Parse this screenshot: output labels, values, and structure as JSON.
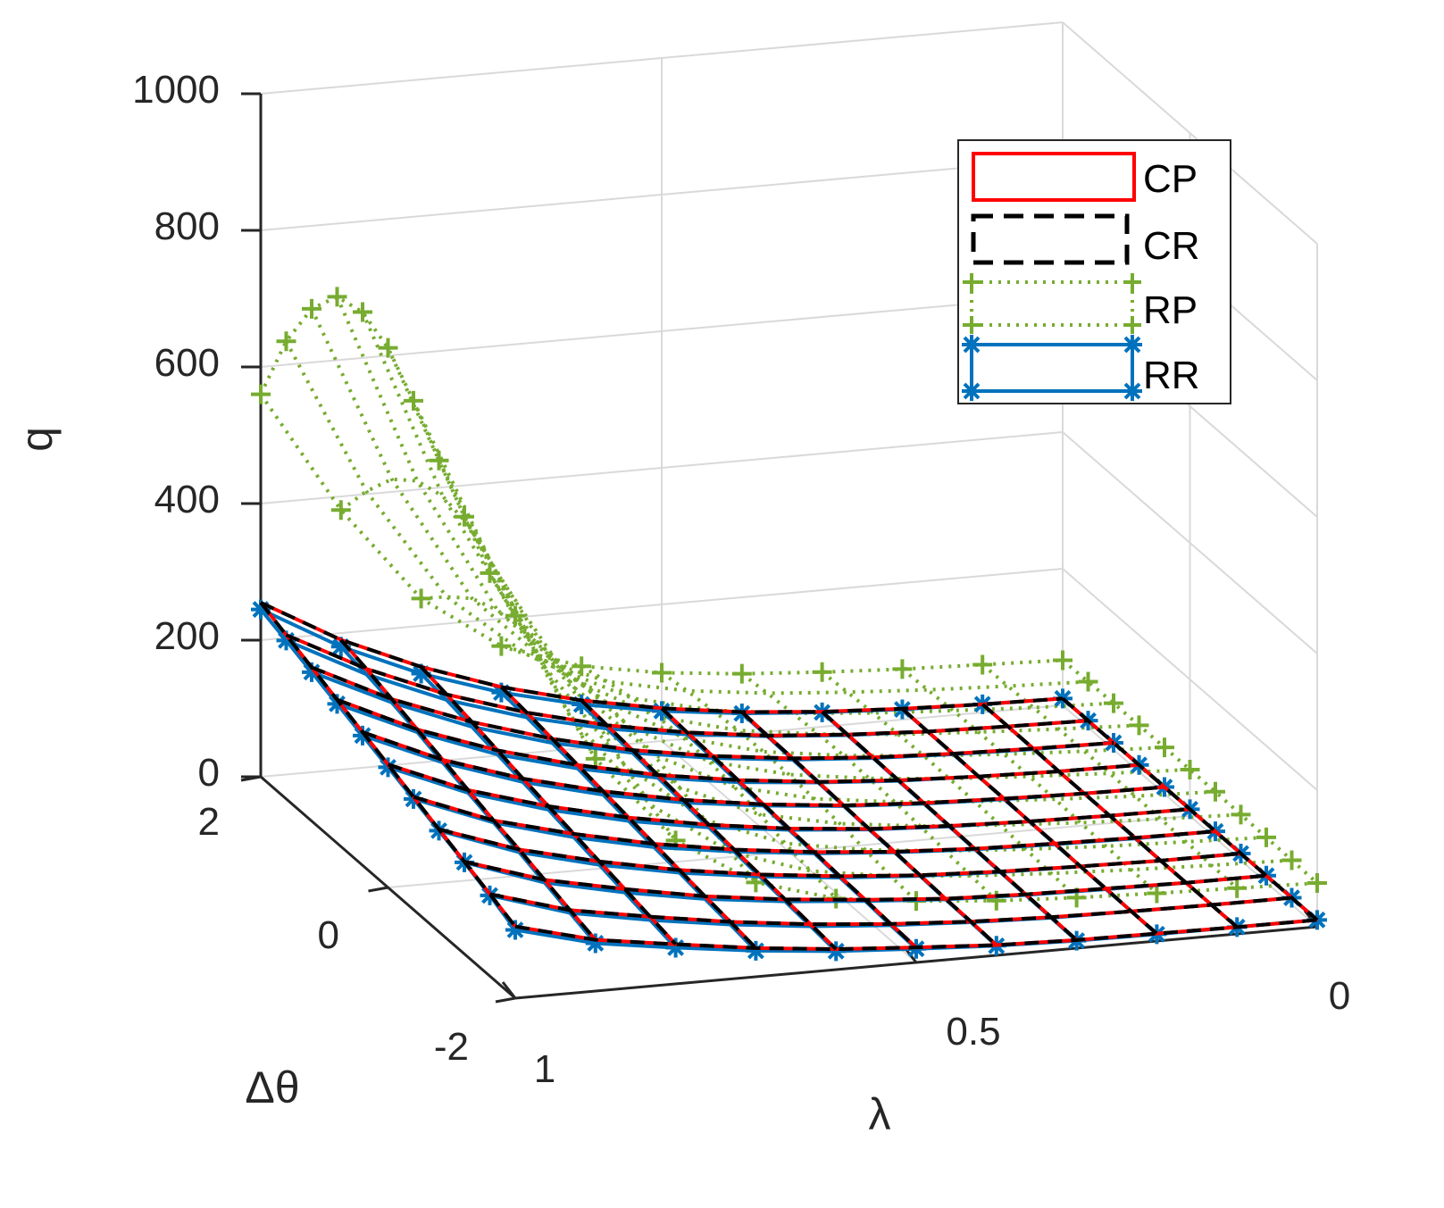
{
  "chart_data": {
    "type": "surface3d",
    "title": "",
    "xlabel": "λ",
    "ylabel": "Δθ",
    "zlabel": "q",
    "xlim": [
      0,
      1
    ],
    "ylim": [
      -2,
      2
    ],
    "zlim": [
      0,
      1000
    ],
    "x_ticks": [
      "0",
      "0.5",
      "1"
    ],
    "y_ticks": [
      "-2",
      "0",
      "2"
    ],
    "z_ticks": [
      "0",
      "200",
      "400",
      "600",
      "800",
      "1000"
    ],
    "grid": true,
    "legend": {
      "location": "top-right",
      "entries": [
        "CP",
        "CR",
        "RP",
        "RR"
      ]
    },
    "lambda_values": [
      1.0,
      0.9,
      0.8,
      0.7,
      0.6,
      0.5,
      0.4,
      0.3,
      0.2,
      0.1,
      0.0
    ],
    "dtheta_values": [
      2.0,
      1.6,
      1.2,
      0.8,
      0.4,
      0.0,
      -0.4,
      -0.8,
      -1.2,
      -1.6,
      -2.0
    ],
    "series": [
      {
        "name": "CP",
        "color": "#ff0000",
        "line": "solid",
        "marker": "none",
        "values_by_lambda": [
          [
            255,
            240,
            225,
            210,
            195,
            180,
            165,
            150,
            135,
            120,
            105
          ],
          [
            190,
            180,
            168,
            156,
            144,
            132,
            120,
            110,
            98,
            86,
            75
          ],
          [
            140,
            132,
            124,
            115,
            106,
            98,
            90,
            82,
            74,
            66,
            58
          ],
          [
            100,
            95,
            89,
            83,
            77,
            71,
            65,
            59,
            53,
            48,
            42
          ],
          [
            70,
            66,
            62,
            58,
            54,
            50,
            46,
            42,
            38,
            34,
            30
          ],
          [
            48,
            45,
            43,
            40,
            37,
            34,
            32,
            29,
            27,
            24,
            22
          ],
          [
            32,
            30,
            29,
            27,
            25,
            23,
            22,
            20,
            18,
            17,
            15
          ],
          [
            22,
            21,
            20,
            19,
            18,
            17,
            16,
            15,
            14,
            13,
            12
          ],
          [
            16,
            15,
            15,
            14,
            14,
            13,
            13,
            12,
            12,
            11,
            11
          ],
          [
            12,
            12,
            12,
            11,
            11,
            11,
            11,
            10,
            10,
            10,
            10
          ],
          [
            10,
            10,
            10,
            10,
            10,
            10,
            10,
            10,
            10,
            10,
            10
          ]
        ]
      },
      {
        "name": "CR",
        "color": "#000000",
        "line": "dashed",
        "marker": "none",
        "values_by_lambda": [
          [
            255,
            240,
            225,
            210,
            195,
            180,
            165,
            150,
            135,
            120,
            105
          ],
          [
            190,
            180,
            168,
            156,
            144,
            132,
            120,
            110,
            98,
            86,
            75
          ],
          [
            140,
            132,
            124,
            115,
            106,
            98,
            90,
            82,
            74,
            66,
            58
          ],
          [
            100,
            95,
            89,
            83,
            77,
            71,
            65,
            59,
            53,
            48,
            42
          ],
          [
            70,
            66,
            62,
            58,
            54,
            50,
            46,
            42,
            38,
            34,
            30
          ],
          [
            48,
            45,
            43,
            40,
            37,
            34,
            32,
            29,
            27,
            24,
            22
          ],
          [
            32,
            30,
            29,
            27,
            25,
            23,
            22,
            20,
            18,
            17,
            15
          ],
          [
            22,
            21,
            20,
            19,
            18,
            17,
            16,
            15,
            14,
            13,
            12
          ],
          [
            16,
            15,
            15,
            14,
            14,
            13,
            13,
            12,
            12,
            11,
            11
          ],
          [
            12,
            12,
            12,
            11,
            11,
            11,
            11,
            10,
            10,
            10,
            10
          ],
          [
            10,
            10,
            10,
            10,
            10,
            10,
            10,
            10,
            10,
            10,
            10
          ]
        ]
      },
      {
        "name": "RP",
        "color": "#77ac30",
        "line": "dotted",
        "marker": "+",
        "values_by_lambda": [
          [
            560,
            670,
            750,
            800,
            810,
            790,
            745,
            690,
            640,
            590,
            560
          ],
          [
            380,
            440,
            490,
            520,
            530,
            520,
            490,
            450,
            410,
            370,
            340
          ],
          [
            240,
            275,
            305,
            320,
            325,
            320,
            305,
            280,
            255,
            230,
            210
          ],
          [
            160,
            180,
            195,
            205,
            210,
            205,
            195,
            180,
            165,
            150,
            138
          ],
          [
            120,
            130,
            138,
            143,
            145,
            143,
            138,
            130,
            120,
            112,
            104
          ],
          [
            100,
            106,
            110,
            113,
            114,
            113,
            110,
            106,
            100,
            94,
            90
          ],
          [
            88,
            92,
            95,
            97,
            98,
            97,
            95,
            92,
            88,
            84,
            80
          ],
          [
            80,
            83,
            85,
            86,
            87,
            86,
            85,
            83,
            80,
            77,
            74
          ],
          [
            74,
            76,
            78,
            79,
            79,
            79,
            78,
            76,
            74,
            72,
            70
          ],
          [
            70,
            71,
            72,
            73,
            73,
            73,
            72,
            71,
            70,
            68,
            67
          ],
          [
            66,
            67,
            68,
            68,
            68,
            68,
            68,
            67,
            66,
            65,
            64
          ]
        ]
      },
      {
        "name": "RR",
        "color": "#0072bd",
        "line": "solid",
        "marker": "*",
        "values_by_lambda": [
          [
            245,
            232,
            218,
            204,
            190,
            176,
            162,
            148,
            134,
            118,
            100
          ],
          [
            180,
            172,
            163,
            152,
            140,
            128,
            117,
            106,
            94,
            82,
            70
          ],
          [
            130,
            124,
            117,
            109,
            101,
            93,
            85,
            77,
            69,
            61,
            53
          ],
          [
            92,
            88,
            83,
            78,
            72,
            66,
            60,
            55,
            49,
            44,
            38
          ],
          [
            64,
            61,
            58,
            54,
            50,
            46,
            43,
            39,
            35,
            31,
            27
          ],
          [
            44,
            42,
            40,
            37,
            35,
            32,
            30,
            27,
            25,
            22,
            20
          ],
          [
            30,
            29,
            27,
            26,
            24,
            22,
            21,
            19,
            17,
            16,
            14
          ],
          [
            21,
            20,
            19,
            18,
            17,
            16,
            15,
            14,
            13,
            12,
            11
          ],
          [
            15,
            15,
            14,
            14,
            13,
            13,
            12,
            12,
            11,
            11,
            10
          ],
          [
            12,
            12,
            11,
            11,
            11,
            11,
            10,
            10,
            10,
            10,
            10
          ],
          [
            10,
            10,
            10,
            10,
            10,
            10,
            10,
            10,
            10,
            10,
            10
          ]
        ]
      }
    ]
  }
}
